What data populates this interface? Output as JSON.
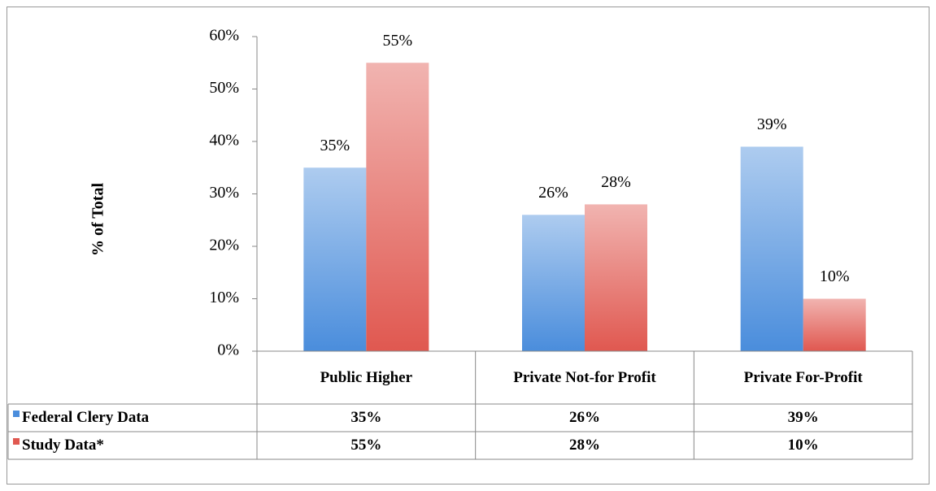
{
  "chart_data": {
    "type": "bar",
    "y_label": "% of Total",
    "categories": [
      "Public Higher",
      "Private Not-for Profit",
      "Private For-Profit"
    ],
    "series": [
      {
        "name": "Federal Clery Data",
        "color": "#4a8ddc",
        "values": [
          35,
          26,
          39
        ],
        "value_labels": [
          "35%",
          "26%",
          "39%"
        ]
      },
      {
        "name": "Study Data*",
        "color": "#e05850",
        "values": [
          55,
          28,
          10
        ],
        "value_labels": [
          "55%",
          "28%",
          "10%"
        ]
      }
    ],
    "ylim": [
      0,
      60
    ],
    "yticks": [
      {
        "value": 0,
        "label": "0%"
      },
      {
        "value": 10,
        "label": "10%"
      },
      {
        "value": 20,
        "label": "20%"
      },
      {
        "value": 30,
        "label": "30%"
      },
      {
        "value": 40,
        "label": "40%"
      },
      {
        "value": 50,
        "label": "50%"
      },
      {
        "value": 60,
        "label": "60%"
      }
    ],
    "data_table": true
  }
}
